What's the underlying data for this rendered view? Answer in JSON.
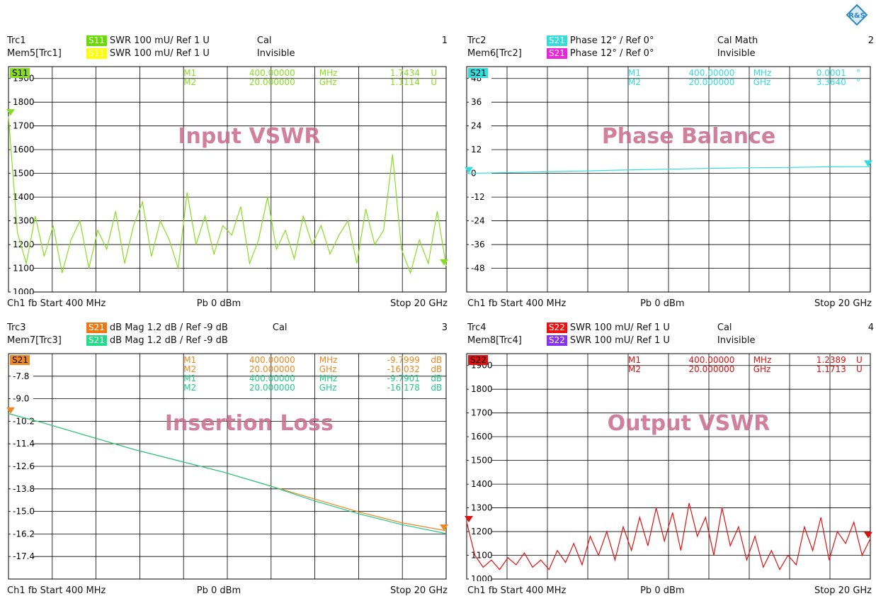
{
  "logo_label": "R&S",
  "panels": [
    {
      "id": 1,
      "num": "1",
      "trace_line": {
        "name": "Trc1",
        "badge": "S11",
        "badge_color": "#66dd00",
        "text": "SWR  100 mU/  Ref 1 U",
        "status": "Cal"
      },
      "mem_line": {
        "name": "Mem5[Trc1]",
        "badge": "S11",
        "badge_color": "#ffff00",
        "text": "SWR  100 mU/  Ref 1 U",
        "status": "Invisible"
      },
      "title": "Input VSWR",
      "footer": {
        "left": "Ch1  fb  Start  400 MHz",
        "center": "Pb   0 dBm",
        "right": "Stop  20 GHz"
      },
      "markers": [
        {
          "name": "M1",
          "value": "400.00000",
          "unit": "MHz",
          "reading": "1.7434",
          "runit": "U",
          "color": "#88dd22"
        },
        {
          "name": "M2",
          "value": "20.000000",
          "unit": "GHz",
          "reading": "1.1114",
          "runit": "U",
          "color": "#88dd22"
        }
      ]
    },
    {
      "id": 2,
      "num": "2",
      "trace_line": {
        "name": "Trc2",
        "badge": "S21",
        "badge_color": "#33dddd",
        "text": "Phase  12° /  Ref 0°",
        "status": "Cal Math"
      },
      "mem_line": {
        "name": "Mem6[Trc2]",
        "badge": "S21",
        "badge_color": "#ee22dd",
        "text": "Phase  12° /  Ref 0°",
        "status": "Invisible"
      },
      "title": "Phase Balance",
      "footer": {
        "left": "Ch1  fb  Start  400 MHz",
        "center": "Pb   0 dBm",
        "right": "Stop  20 GHz"
      },
      "markers": [
        {
          "name": "M1",
          "value": "400.00000",
          "unit": "MHz",
          "reading": "0.0001",
          "runit": "°",
          "color": "#33dddd"
        },
        {
          "name": "M2",
          "value": "20.000000",
          "unit": "GHz",
          "reading": "3.3640",
          "runit": "°",
          "color": "#33dddd"
        }
      ]
    },
    {
      "id": 3,
      "num": "3",
      "trace_line": {
        "name": "Trc3",
        "badge": "S21",
        "badge_color": "#ee7711",
        "text": "dB Mag  1.2 dB /  Ref -9 dB",
        "status": "Cal"
      },
      "mem_line": {
        "name": "Mem7[Trc3]",
        "badge": "S21",
        "badge_color": "#22dd88",
        "text": "dB Mag  1.2 dB /  Ref -9 dB",
        "status": ""
      },
      "title": "Insertion Loss",
      "footer": {
        "left": "Ch1  fb  Start  400 MHz",
        "center": "Pb   0 dBm",
        "right": "Stop  20 GHz"
      },
      "markers": [
        {
          "name": "M1",
          "value": "400.00000",
          "unit": "MHz",
          "reading": "-9.7999",
          "runit": "dB",
          "color": "#ee8822"
        },
        {
          "name": "M2",
          "value": "20.000000",
          "unit": "GHz",
          "reading": "-16.032",
          "runit": "dB",
          "color": "#ee8822"
        },
        {
          "name": "M1",
          "value": "400.00000",
          "unit": "MHz",
          "reading": "-9.7901",
          "runit": "dB",
          "color": "#22cc88"
        },
        {
          "name": "M2",
          "value": "20.000000",
          "unit": "GHz",
          "reading": "-16.178",
          "runit": "dB",
          "color": "#22cc88"
        }
      ]
    },
    {
      "id": 4,
      "num": "4",
      "trace_line": {
        "name": "Trc4",
        "badge": "S22",
        "badge_color": "#ee1111",
        "text": "SWR  100 mU/  Ref 1 U",
        "status": "Cal"
      },
      "mem_line": {
        "name": "Mem8[Trc4]",
        "badge": "S22",
        "badge_color": "#8833ee",
        "text": "SWR  100 mU/  Ref 1 U",
        "status": "Invisible"
      },
      "title": "Output VSWR",
      "footer": {
        "left": "Ch1  fb  Start  400 MHz",
        "center": "Pb   0 dBm",
        "right": "Stop  20 GHz"
      },
      "markers": [
        {
          "name": "M1",
          "value": "400.00000",
          "unit": "MHz",
          "reading": "1.2389",
          "runit": "U",
          "color": "#dd1111"
        },
        {
          "name": "M2",
          "value": "20.000000",
          "unit": "GHz",
          "reading": "1.1713",
          "runit": "U",
          "color": "#dd1111"
        }
      ]
    }
  ],
  "chart_data": [
    {
      "type": "line",
      "panel": 1,
      "title": "Input VSWR",
      "trace_label": "S11",
      "x_range": [
        "400 MHz",
        "20 GHz"
      ],
      "ylim": [
        1.0,
        1.95
      ],
      "y_tick_values": [
        1.9,
        1.8,
        1.7,
        1.6,
        1.5,
        1.4,
        1.3,
        1.2,
        1.1,
        1.0
      ],
      "y_tick_labels": [
        "1900",
        "1800",
        "1700",
        "1600",
        "1500",
        "1400",
        "1300",
        "1200",
        "1100",
        "1000"
      ],
      "grid": true,
      "series": [
        {
          "label": "S11",
          "color": "#88dd22",
          "x": [
            0.4,
            0.8,
            1.2,
            1.6,
            2.0,
            2.4,
            2.8,
            3.2,
            3.6,
            4.0,
            4.4,
            4.8,
            5.2,
            5.6,
            6.0,
            6.4,
            6.8,
            7.2,
            7.6,
            8.0,
            8.4,
            8.8,
            9.2,
            9.6,
            10.0,
            10.4,
            10.8,
            11.2,
            11.6,
            12.0,
            12.4,
            12.8,
            13.2,
            13.6,
            14.0,
            14.4,
            14.8,
            15.2,
            15.6,
            16.0,
            16.4,
            16.8,
            17.2,
            17.6,
            18.0,
            18.4,
            18.8,
            19.2,
            19.6,
            20.0
          ],
          "values": [
            1.74,
            1.25,
            1.12,
            1.32,
            1.15,
            1.28,
            1.08,
            1.22,
            1.3,
            1.1,
            1.26,
            1.18,
            1.34,
            1.12,
            1.28,
            1.38,
            1.15,
            1.3,
            1.22,
            1.1,
            1.42,
            1.2,
            1.32,
            1.16,
            1.28,
            1.24,
            1.36,
            1.12,
            1.22,
            1.4,
            1.18,
            1.26,
            1.14,
            1.32,
            1.2,
            1.28,
            1.16,
            1.24,
            1.3,
            1.12,
            1.35,
            1.2,
            1.26,
            1.58,
            1.18,
            1.08,
            1.22,
            1.12,
            1.34,
            1.11
          ]
        }
      ],
      "marker_points": [
        {
          "name": "M1",
          "x": 0.4,
          "y": 1.7434
        },
        {
          "name": "M2",
          "x": 20.0,
          "y": 1.1114
        }
      ]
    },
    {
      "type": "line",
      "panel": 2,
      "title": "Phase Balance",
      "trace_label": "S21",
      "x_range": [
        "400 MHz",
        "20 GHz"
      ],
      "ylim": [
        -60,
        54
      ],
      "y_tick_values": [
        48,
        36,
        24,
        12,
        0,
        -12,
        -24,
        -36,
        -48
      ],
      "y_tick_labels": [
        "48",
        "36",
        "24",
        "12",
        "0",
        "-12",
        "-24",
        "-36",
        "-48"
      ],
      "grid": true,
      "series": [
        {
          "label": "S21",
          "color": "#33dddd",
          "x": [
            0.4,
            2.0,
            4.0,
            6.0,
            8.0,
            10.0,
            12.0,
            14.0,
            16.0,
            18.0,
            20.0
          ],
          "values": [
            0.0,
            0.3,
            0.8,
            1.2,
            1.7,
            2.1,
            2.5,
            2.8,
            3.0,
            3.3,
            3.364
          ]
        }
      ],
      "marker_points": [
        {
          "name": "M1",
          "x": 0.4,
          "y": 0.0001
        },
        {
          "name": "M2",
          "x": 20.0,
          "y": 3.364
        }
      ]
    },
    {
      "type": "line",
      "panel": 3,
      "title": "Insertion Loss",
      "trace_label": "S21",
      "x_range": [
        "400 MHz",
        "20 GHz"
      ],
      "ylim": [
        -18.6,
        -6.6
      ],
      "y_tick_values": [
        -7.8,
        -9.0,
        -10.2,
        -11.4,
        -12.6,
        -13.8,
        -15.0,
        -16.2,
        -17.4
      ],
      "y_tick_labels": [
        "-7.8",
        "-9.0",
        "-10.2",
        "-11.4",
        "-12.6",
        "-13.8",
        "-15.0",
        "-16.2",
        "-17.4"
      ],
      "grid": true,
      "series": [
        {
          "label": "S21",
          "color": "#ee8822",
          "x": [
            0.4,
            2.0,
            4.0,
            6.0,
            8.0,
            10.0,
            12.0,
            14.0,
            16.0,
            18.0,
            20.0
          ],
          "values": [
            -9.8,
            -10.3,
            -11.0,
            -11.7,
            -12.3,
            -12.9,
            -13.6,
            -14.3,
            -15.0,
            -15.6,
            -16.03
          ]
        },
        {
          "label": "S21",
          "color": "#22cc88",
          "x": [
            0.4,
            2.0,
            4.0,
            6.0,
            8.0,
            10.0,
            12.0,
            14.0,
            16.0,
            18.0,
            20.0
          ],
          "values": [
            -9.79,
            -10.3,
            -11.0,
            -11.7,
            -12.3,
            -12.9,
            -13.6,
            -14.4,
            -15.1,
            -15.7,
            -16.18
          ]
        }
      ],
      "marker_points": [
        {
          "name": "M1",
          "x": 0.4,
          "y": -9.7999
        },
        {
          "name": "M2",
          "x": 20.0,
          "y": -16.032
        }
      ]
    },
    {
      "type": "line",
      "panel": 4,
      "title": "Output VSWR",
      "trace_label": "S22",
      "x_range": [
        "400 MHz",
        "20 GHz"
      ],
      "ylim": [
        1.0,
        1.95
      ],
      "y_tick_values": [
        1.9,
        1.8,
        1.7,
        1.6,
        1.5,
        1.4,
        1.3,
        1.2,
        1.1,
        1.0
      ],
      "y_tick_labels": [
        "1900",
        "1800",
        "1700",
        "1600",
        "1500",
        "1400",
        "1300",
        "1200",
        "1100",
        "1000"
      ],
      "grid": true,
      "series": [
        {
          "label": "S22",
          "color": "#dd1111",
          "x": [
            0.4,
            0.8,
            1.2,
            1.6,
            2.0,
            2.4,
            2.8,
            3.2,
            3.6,
            4.0,
            4.4,
            4.8,
            5.2,
            5.6,
            6.0,
            6.4,
            6.8,
            7.2,
            7.6,
            8.0,
            8.4,
            8.8,
            9.2,
            9.6,
            10.0,
            10.4,
            10.8,
            11.2,
            11.6,
            12.0,
            12.4,
            12.8,
            13.2,
            13.6,
            14.0,
            14.4,
            14.8,
            15.2,
            15.6,
            16.0,
            16.4,
            16.8,
            17.2,
            17.6,
            18.0,
            18.4,
            18.8,
            19.2,
            19.6,
            20.0
          ],
          "values": [
            1.24,
            1.1,
            1.05,
            1.08,
            1.04,
            1.09,
            1.06,
            1.11,
            1.05,
            1.08,
            1.04,
            1.12,
            1.07,
            1.15,
            1.06,
            1.18,
            1.1,
            1.2,
            1.08,
            1.22,
            1.12,
            1.26,
            1.14,
            1.3,
            1.16,
            1.28,
            1.12,
            1.32,
            1.18,
            1.26,
            1.1,
            1.3,
            1.14,
            1.22,
            1.08,
            1.18,
            1.05,
            1.12,
            1.04,
            1.1,
            1.06,
            1.22,
            1.12,
            1.26,
            1.08,
            1.2,
            1.15,
            1.24,
            1.1,
            1.17
          ]
        }
      ],
      "marker_points": [
        {
          "name": "M1",
          "x": 0.4,
          "y": 1.2389
        },
        {
          "name": "M2",
          "x": 20.0,
          "y": 1.1713
        }
      ]
    }
  ]
}
